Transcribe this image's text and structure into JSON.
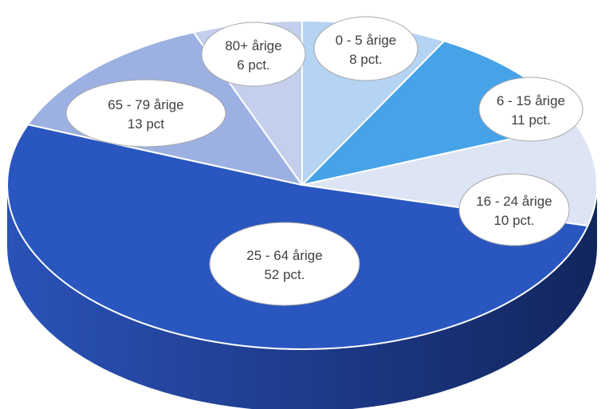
{
  "chart_data": {
    "type": "pie",
    "style": "3d",
    "slices": [
      {
        "category": "0 - 5 årige",
        "value": 8,
        "label_name": "0 - 5 årige",
        "label_value": "8 pct.",
        "color": "#b5d3f2"
      },
      {
        "category": "6 - 15 årige",
        "value": 11,
        "label_name": "6 - 15 årige",
        "label_value": "11 pct.",
        "color": "#46a3e8"
      },
      {
        "category": "16 - 24 årige",
        "value": 10,
        "label_name": "16 - 24 årige",
        "label_value": "10 pct.",
        "color": "#dde4f3"
      },
      {
        "category": "25 - 64 årige",
        "value": 52,
        "label_name": "25 - 64 årige",
        "label_value": "52 pct.",
        "color": "#2a56c0"
      },
      {
        "category": "65 - 79 årige",
        "value": 13,
        "label_name": "65 - 79 årige",
        "label_value": "13 pct",
        "color": "#9cb0e2"
      },
      {
        "category": "80+ årige",
        "value": 6,
        "label_name": "80+ årige",
        "label_value": "6 pct.",
        "color": "#c3cfec"
      }
    ],
    "side_color_light": "#2a52b8",
    "side_color_dark": "#12255e",
    "callout_fill": "#ffffff",
    "callout_stroke": "#a6a6a6"
  }
}
